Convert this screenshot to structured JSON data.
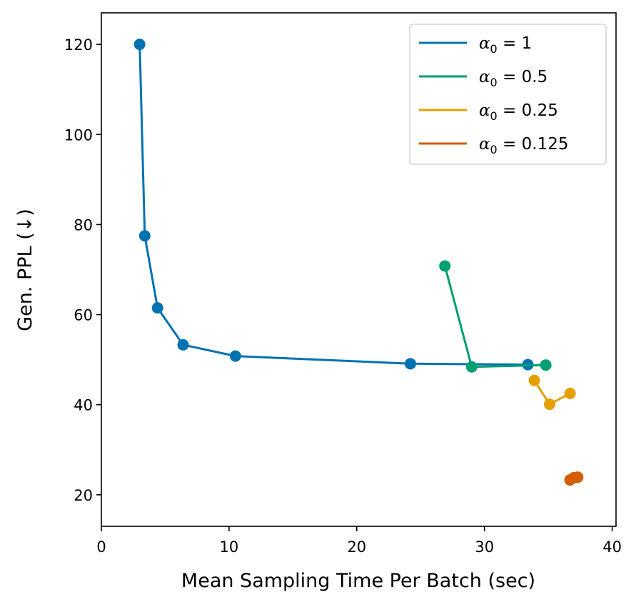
{
  "chart_data": {
    "type": "line",
    "title": "",
    "xlabel": "Mean Sampling Time Per Batch (sec)",
    "ylabel": "Gen. PPL (↓)",
    "xlim": [
      0,
      40.3
    ],
    "ylim": [
      13,
      127
    ],
    "xticks": [
      0,
      10,
      20,
      30,
      40
    ],
    "yticks": [
      20,
      40,
      60,
      80,
      100,
      120
    ],
    "grid": false,
    "legend_position": "top-right",
    "series": [
      {
        "name": "α0 = 1",
        "symbol": "α",
        "sub": "0",
        "value": "1",
        "color": "#0072b2",
        "x": [
          3.0,
          3.4,
          4.4,
          6.4,
          10.5,
          24.2,
          33.4
        ],
        "y": [
          120,
          77.5,
          61.5,
          53.3,
          50.8,
          49.1,
          48.9
        ]
      },
      {
        "name": "α0 = 0.5",
        "symbol": "α",
        "sub": "0",
        "value": "0.5",
        "color": "#009e73",
        "x": [
          26.9,
          29.0,
          34.8
        ],
        "y": [
          70.8,
          48.4,
          48.8
        ]
      },
      {
        "name": "α0 = 0.25",
        "symbol": "α",
        "sub": "0",
        "value": "0.25",
        "color": "#e69f00",
        "x": [
          33.9,
          35.1,
          36.7
        ],
        "y": [
          45.4,
          40.1,
          42.5
        ]
      },
      {
        "name": "α0 = 0.125",
        "symbol": "α",
        "sub": "0",
        "value": "0.125",
        "color": "#d55e00",
        "x": [
          36.7,
          37.0,
          37.3
        ],
        "y": [
          23.3,
          23.8,
          23.9
        ]
      }
    ]
  }
}
